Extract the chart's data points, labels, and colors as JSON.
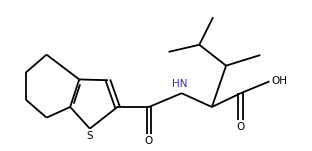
{
  "background": "#ffffff",
  "line_color": "#000000",
  "line_width": 1.3,
  "nh_color": "#3333bb",
  "s_color": "#000000",
  "o_color": "#000000",
  "fs": 7.5,
  "sx": 1.72,
  "sy": 1.55,
  "c2x": 2.42,
  "c2y": 2.1,
  "c3x": 2.18,
  "c3y": 2.78,
  "c3ax": 1.45,
  "c3ay": 2.8,
  "c7ax": 1.22,
  "c7ay": 2.1,
  "c7x": 0.62,
  "c7y": 1.83,
  "c6x": 0.1,
  "c6y": 2.28,
  "c5x": 0.1,
  "c5y": 2.98,
  "c4x": 0.62,
  "c4y": 3.43,
  "camx": 3.22,
  "camy": 2.1,
  "oamx": 3.22,
  "oamy": 1.42,
  "nhx": 4.05,
  "nhy": 2.45,
  "cax": 4.82,
  "cay": 2.1,
  "ccox": 5.55,
  "ccoy": 2.45,
  "co1x": 5.55,
  "co1y": 1.77,
  "co2x": 6.28,
  "co2y": 2.75,
  "cbx": 5.18,
  "cby": 3.15,
  "cmex": 6.05,
  "cmey": 3.42,
  "cgx": 4.5,
  "cgy": 3.68,
  "cdx": 4.85,
  "cdy": 4.38,
  "cex": 3.72,
  "cey": 3.5,
  "xlim": [
    0.0,
    6.8
  ],
  "ylim": [
    1.0,
    4.8
  ]
}
